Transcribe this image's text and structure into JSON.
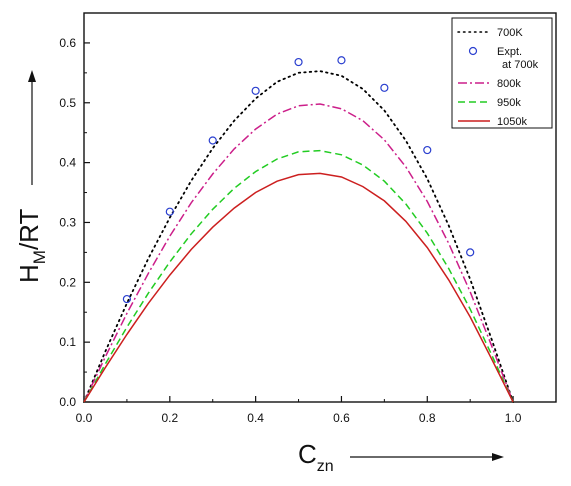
{
  "chart_data": {
    "type": "line",
    "xlabel": "C",
    "xlabel_sub": "zn",
    "ylabel": "H",
    "ylabel_sub": "M",
    "ylabel_tail": "/RT",
    "xlim": [
      0,
      1.1
    ],
    "ylim": [
      0,
      0.65
    ],
    "x_ticks": [
      "0.0",
      "0.2",
      "0.4",
      "0.6",
      "0.8",
      "1.0"
    ],
    "y_ticks": [
      "0.0",
      "0.1",
      "0.2",
      "0.3",
      "0.4",
      "0.5",
      "0.6"
    ],
    "grid": false,
    "legend_position": "top-right",
    "series": [
      {
        "name": "700K",
        "style": "dotted",
        "color": "#000000",
        "x": [
          0,
          0.05,
          0.1,
          0.15,
          0.2,
          0.25,
          0.3,
          0.35,
          0.4,
          0.45,
          0.5,
          0.55,
          0.6,
          0.65,
          0.7,
          0.75,
          0.8,
          0.85,
          0.9,
          0.95,
          1.0
        ],
        "y": [
          0,
          0.085,
          0.165,
          0.24,
          0.308,
          0.37,
          0.424,
          0.47,
          0.507,
          0.535,
          0.55,
          0.553,
          0.545,
          0.523,
          0.487,
          0.437,
          0.373,
          0.295,
          0.205,
          0.105,
          0
        ]
      },
      {
        "name": "Expt.",
        "name_line2": "at 700k",
        "style": "markers",
        "color": "#2a3fcf",
        "x": [
          0.1,
          0.2,
          0.3,
          0.4,
          0.5,
          0.6,
          0.7,
          0.8,
          0.9
        ],
        "y": [
          0.172,
          0.318,
          0.437,
          0.52,
          0.568,
          0.571,
          0.525,
          0.421,
          0.25
        ]
      },
      {
        "name": "800k",
        "style": "dashdot",
        "color": "#cc1f8a",
        "x": [
          0,
          0.05,
          0.1,
          0.15,
          0.2,
          0.25,
          0.3,
          0.35,
          0.4,
          0.45,
          0.5,
          0.55,
          0.6,
          0.65,
          0.7,
          0.75,
          0.8,
          0.85,
          0.9,
          0.95,
          1.0
        ],
        "y": [
          0,
          0.076,
          0.148,
          0.215,
          0.277,
          0.333,
          0.381,
          0.423,
          0.456,
          0.481,
          0.495,
          0.498,
          0.49,
          0.47,
          0.438,
          0.393,
          0.335,
          0.265,
          0.184,
          0.094,
          0
        ]
      },
      {
        "name": "950k",
        "style": "dashed",
        "color": "#22cc22",
        "x": [
          0,
          0.05,
          0.1,
          0.15,
          0.2,
          0.25,
          0.3,
          0.35,
          0.4,
          0.45,
          0.5,
          0.55,
          0.6,
          0.65,
          0.7,
          0.75,
          0.8,
          0.85,
          0.9,
          0.95,
          1.0
        ],
        "y": [
          0,
          0.064,
          0.125,
          0.182,
          0.234,
          0.281,
          0.322,
          0.357,
          0.385,
          0.406,
          0.418,
          0.42,
          0.413,
          0.396,
          0.369,
          0.331,
          0.282,
          0.223,
          0.155,
          0.079,
          0
        ]
      },
      {
        "name": "1050k",
        "style": "solid",
        "color": "#cc1f1f",
        "x": [
          0,
          0.05,
          0.1,
          0.15,
          0.2,
          0.25,
          0.3,
          0.35,
          0.4,
          0.45,
          0.5,
          0.55,
          0.6,
          0.65,
          0.7,
          0.75,
          0.8,
          0.85,
          0.9,
          0.95,
          1.0
        ],
        "y": [
          0,
          0.058,
          0.113,
          0.165,
          0.212,
          0.255,
          0.292,
          0.324,
          0.35,
          0.369,
          0.38,
          0.382,
          0.376,
          0.36,
          0.336,
          0.302,
          0.258,
          0.204,
          0.142,
          0.072,
          0
        ]
      }
    ]
  }
}
